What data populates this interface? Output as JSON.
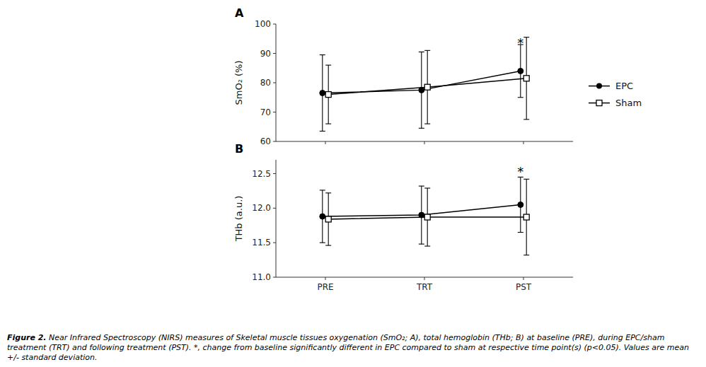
{
  "chart_data": [
    {
      "type": "line",
      "title": "A",
      "y_label": "SmO₂ (%)",
      "categories": [
        "PRE",
        "TRT",
        "PST"
      ],
      "tick_labels": "y",
      "ylim": [
        60,
        100
      ],
      "yticks": [
        60,
        70,
        80,
        90,
        100
      ],
      "legend": "right",
      "series": [
        {
          "name": "EPC",
          "color": "#000000",
          "marker": "circle",
          "values": [
            76.5,
            77.5,
            84.0
          ],
          "errors": [
            13.0,
            13.0,
            9.0
          ]
        },
        {
          "name": "Sham",
          "color": "#000000",
          "marker": "square",
          "values": [
            76.0,
            78.5,
            81.5
          ],
          "errors": [
            10.0,
            12.5,
            14.0
          ]
        }
      ],
      "annotations": [
        {
          "text": "*",
          "x": 1.97,
          "y": 94.5
        }
      ]
    },
    {
      "type": "line",
      "title": "B",
      "y_label": "THb (a.u.)",
      "categories": [
        "PRE",
        "TRT",
        "PST"
      ],
      "ylim": [
        11.0,
        12.7
      ],
      "yticks": [
        {
          "value": 11.0,
          "label": "11.0"
        },
        11.5,
        {
          "value": 12.0,
          "label": "12.0"
        },
        12.5
      ],
      "series": [
        {
          "color": "#000000",
          "marker": "circle",
          "values": [
            11.88,
            11.9,
            12.05
          ],
          "errors": [
            0.38,
            0.42,
            0.4
          ]
        },
        {
          "color": "#000000",
          "marker": "square",
          "values": [
            11.84,
            11.87,
            11.87
          ],
          "errors": [
            0.38,
            0.42,
            0.55
          ]
        }
      ],
      "annotations": [
        {
          "text": "*",
          "x": 1.97,
          "y": 12.57
        }
      ]
    }
  ],
  "caption": {
    "bold": "Figure 2.",
    "text": " Near Infrared Spectroscopy (NIRS) measures of Skeletal muscle tissues oxygenation (SmO₂; A), total hemoglobin (THb; B) at baseline (PRE), during EPC/sham treatment (TRT) and following treatment (PST). *, change from baseline significantly different in EPC compared to sham at respective time point(s) (p<0.05). Values are mean +/- standard deviation."
  }
}
